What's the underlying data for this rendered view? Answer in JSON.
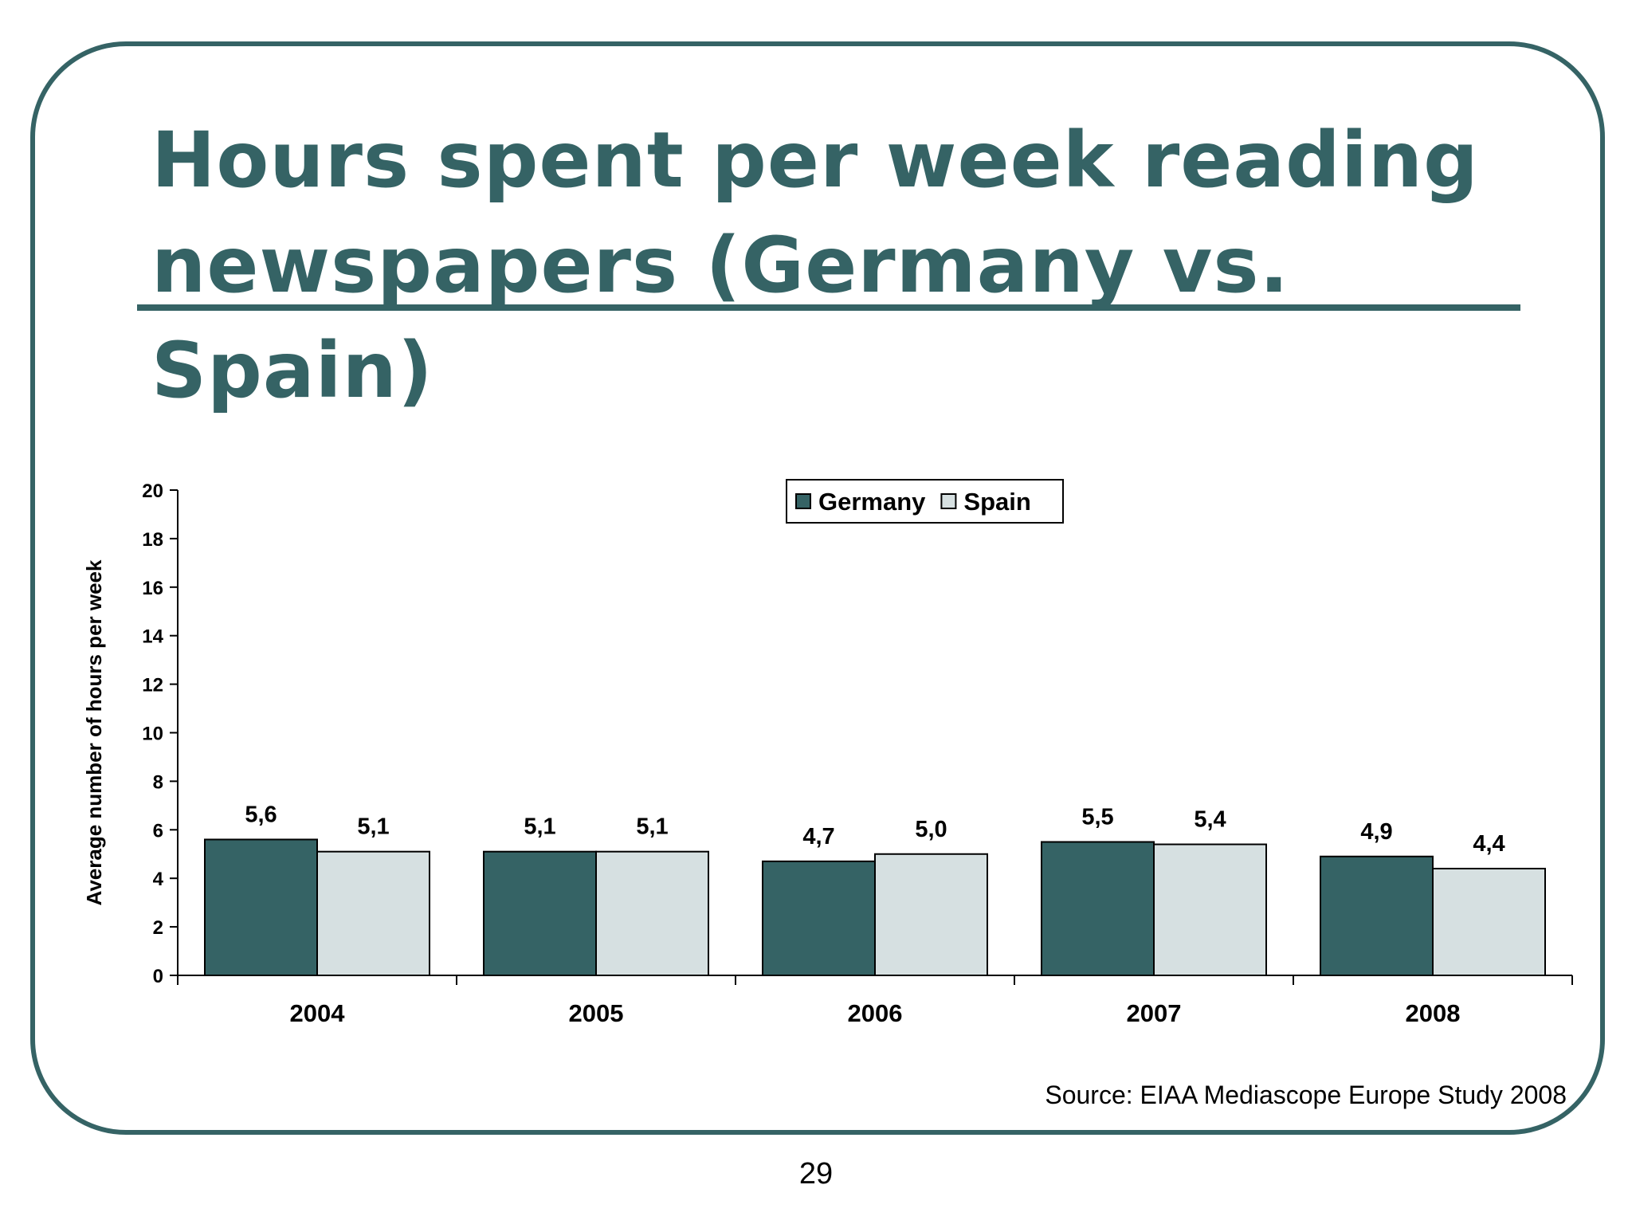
{
  "slide": {
    "title": "Hours spent per week reading newspapers (Germany vs. Spain)",
    "source": "Source: EIAA Mediascope Europe Study 2008",
    "page_number": "29"
  },
  "colors": {
    "frame": "#356365",
    "germany": "#356365",
    "spain": "#d6e0e1"
  },
  "chart_data": {
    "type": "bar",
    "categories": [
      "2004",
      "2005",
      "2006",
      "2007",
      "2008"
    ],
    "series": [
      {
        "name": "Germany",
        "values": [
          5.6,
          5.1,
          4.7,
          5.5,
          4.9
        ],
        "labels": [
          "5,6",
          "5,1",
          "4,7",
          "5,5",
          "4,9"
        ],
        "color": "#356365"
      },
      {
        "name": "Spain",
        "values": [
          5.1,
          5.1,
          5.0,
          5.4,
          4.4
        ],
        "labels": [
          "5,1",
          "5,1",
          "5,0",
          "5,4",
          "4,4"
        ],
        "color": "#d6e0e1"
      }
    ],
    "ylabel": "Average number of hours per week",
    "xlabel": "",
    "ylim": [
      0,
      20
    ],
    "yticks": [
      0,
      2,
      4,
      6,
      8,
      10,
      12,
      14,
      16,
      18,
      20
    ],
    "legend_position": "top-center",
    "grid": false
  }
}
